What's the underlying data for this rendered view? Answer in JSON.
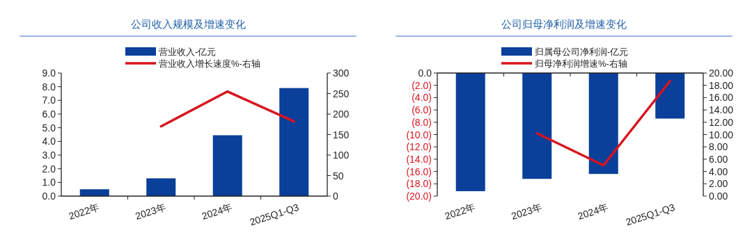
{
  "chart_data": [
    {
      "type": "bar",
      "title": "公司收入规模及增速变化",
      "categories": [
        "2022年",
        "2023年",
        "2024年",
        "2025Q1-Q3"
      ],
      "series": [
        {
          "name": "营业收入-亿元",
          "color": "#0a3f9a",
          "values": [
            0.5,
            1.3,
            4.45,
            7.9
          ]
        },
        {
          "name": "营业收入增长速度%-右轴",
          "type": "line",
          "axis": "y2",
          "color": "#d7141e",
          "values": [
            null,
            170,
            255,
            182
          ]
        }
      ],
      "ylim": [
        0,
        9
      ],
      "yticks": [
        {
          "value": 0,
          "label": "0.0"
        },
        {
          "value": 1,
          "label": "1.0"
        },
        {
          "value": 2,
          "label": "2.0"
        },
        {
          "value": 3,
          "label": "3.0"
        },
        {
          "value": 4,
          "label": "4.0"
        },
        {
          "value": 5,
          "label": "5.0"
        },
        {
          "value": 6,
          "label": "6.0"
        },
        {
          "value": 7,
          "label": "7.0"
        },
        {
          "value": 8,
          "label": "8.0"
        },
        {
          "value": 9,
          "label": "9.0"
        }
      ],
      "y2lim": [
        0,
        300
      ],
      "y2ticks": [
        0,
        50,
        100,
        150,
        200,
        250,
        300
      ],
      "legend": "top",
      "grid": false
    },
    {
      "type": "bar",
      "title": "公司归母净利润及增速变化",
      "categories": [
        "2022年",
        "2023年",
        "2024年",
        "2025Q1-Q3"
      ],
      "series": [
        {
          "name": "归属母公司净利润-亿元",
          "color": "#0a3f9a",
          "values": [
            -19.2,
            -17.2,
            -16.4,
            -7.4
          ]
        },
        {
          "name": "归母净利润增速%-右轴",
          "type": "line",
          "axis": "y2",
          "color": "#d7141e",
          "values": [
            null,
            10.2,
            5.0,
            18.7
          ]
        }
      ],
      "ylim": [
        -20,
        0
      ],
      "yticks": [
        {
          "value": 0,
          "label": "0.0"
        },
        {
          "value": -2,
          "label": "(2.0)"
        },
        {
          "value": -4,
          "label": "(4.0)"
        },
        {
          "value": -6,
          "label": "(6.0)"
        },
        {
          "value": -8,
          "label": "(8.0)"
        },
        {
          "value": -10,
          "label": "(10.0)"
        },
        {
          "value": -12,
          "label": "(12.0)"
        },
        {
          "value": -14,
          "label": "(14.0)"
        },
        {
          "value": -16,
          "label": "(16.0)"
        },
        {
          "value": -18,
          "label": "(18.0)"
        },
        {
          "value": -20,
          "label": "(20.0)"
        }
      ],
      "y2lim": [
        0,
        20
      ],
      "y2ticks": [
        {
          "value": 0,
          "label": "0.00"
        },
        {
          "value": 2,
          "label": "2.00"
        },
        {
          "value": 4,
          "label": "4.00"
        },
        {
          "value": 6,
          "label": "6.00"
        },
        {
          "value": 8,
          "label": "8.00"
        },
        {
          "value": 10,
          "label": "10.00"
        },
        {
          "value": 12,
          "label": "12.00"
        },
        {
          "value": 14,
          "label": "14.00"
        },
        {
          "value": 16,
          "label": "16.00"
        },
        {
          "value": 18,
          "label": "18.00"
        },
        {
          "value": 20,
          "label": "20.00"
        }
      ],
      "legend": "top",
      "grid": false
    }
  ]
}
